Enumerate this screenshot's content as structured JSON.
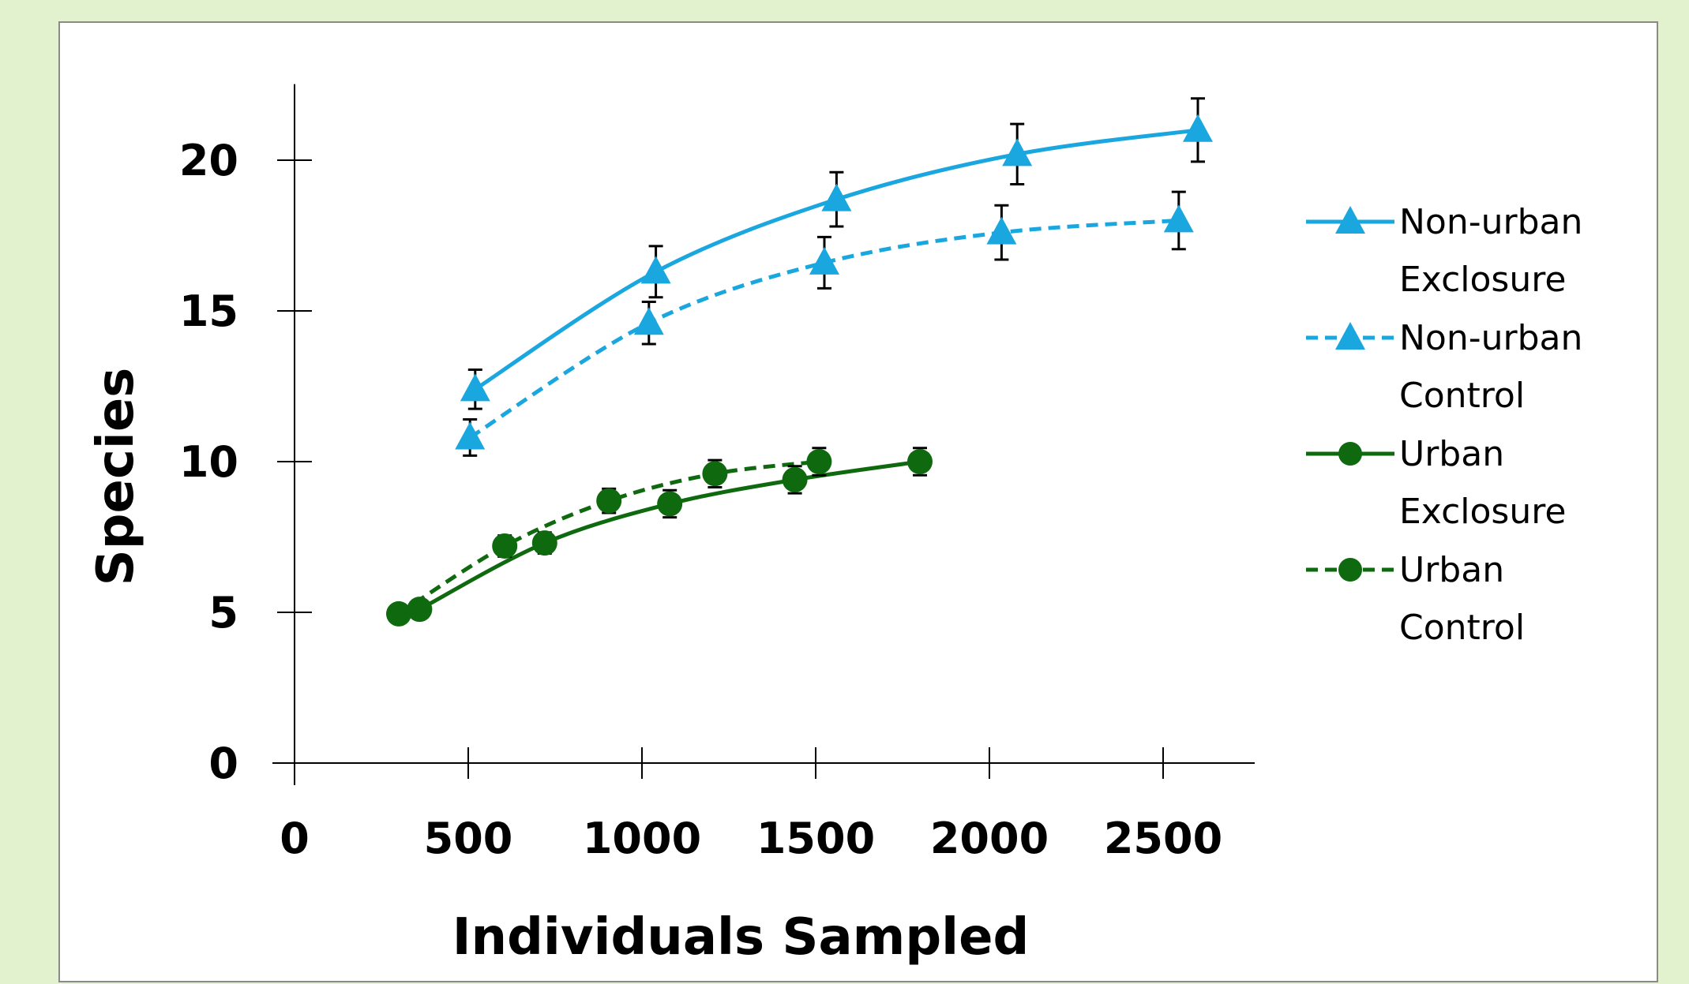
{
  "chart_data": {
    "type": "line",
    "title": "",
    "xlabel": "Individuals Sampled",
    "ylabel": "Species",
    "xlim": [
      0,
      2750
    ],
    "ylim": [
      0,
      22
    ],
    "x_ticks": [
      0,
      500,
      1000,
      1500,
      2000,
      2500
    ],
    "y_ticks": [
      0,
      5,
      10,
      15,
      20
    ],
    "grid": false,
    "legend_position": "right",
    "series": [
      {
        "name": "Non-urban Exclosure",
        "legend_line1": "Non-urban",
        "legend_line2": "Exclosure",
        "color": "#1aa7e0",
        "marker": "triangle",
        "dashed": false,
        "x": [
          520,
          1040,
          1560,
          2080,
          2600
        ],
        "y": [
          12.4,
          16.3,
          18.7,
          20.2,
          21.0
        ],
        "error": [
          0.65,
          0.85,
          0.9,
          1.0,
          1.05
        ]
      },
      {
        "name": "Non-urban Control",
        "legend_line1": "Non-urban",
        "legend_line2": "Control",
        "color": "#1aa7e0",
        "marker": "triangle",
        "dashed": true,
        "x": [
          505,
          1020,
          1525,
          2035,
          2545
        ],
        "y": [
          10.8,
          14.6,
          16.6,
          17.6,
          18.0
        ],
        "error": [
          0.6,
          0.7,
          0.85,
          0.9,
          0.95
        ]
      },
      {
        "name": "Urban Exclosure",
        "legend_line1": "Urban",
        "legend_line2": "Exclosure",
        "color": "#0f6a0f",
        "marker": "circle",
        "dashed": false,
        "x": [
          360,
          720,
          1080,
          1440,
          1800
        ],
        "y": [
          5.1,
          7.3,
          8.6,
          9.4,
          10.0
        ],
        "error": [
          0.3,
          0.35,
          0.45,
          0.45,
          0.45
        ]
      },
      {
        "name": "Urban Control",
        "legend_line1": "Urban",
        "legend_line2": "Control",
        "color": "#0f6a0f",
        "marker": "circle",
        "dashed": true,
        "x": [
          300,
          605,
          905,
          1210,
          1510
        ],
        "y": [
          4.95,
          7.2,
          8.7,
          9.6,
          10.0
        ],
        "error": [
          0.25,
          0.35,
          0.4,
          0.45,
          0.45
        ]
      }
    ]
  }
}
